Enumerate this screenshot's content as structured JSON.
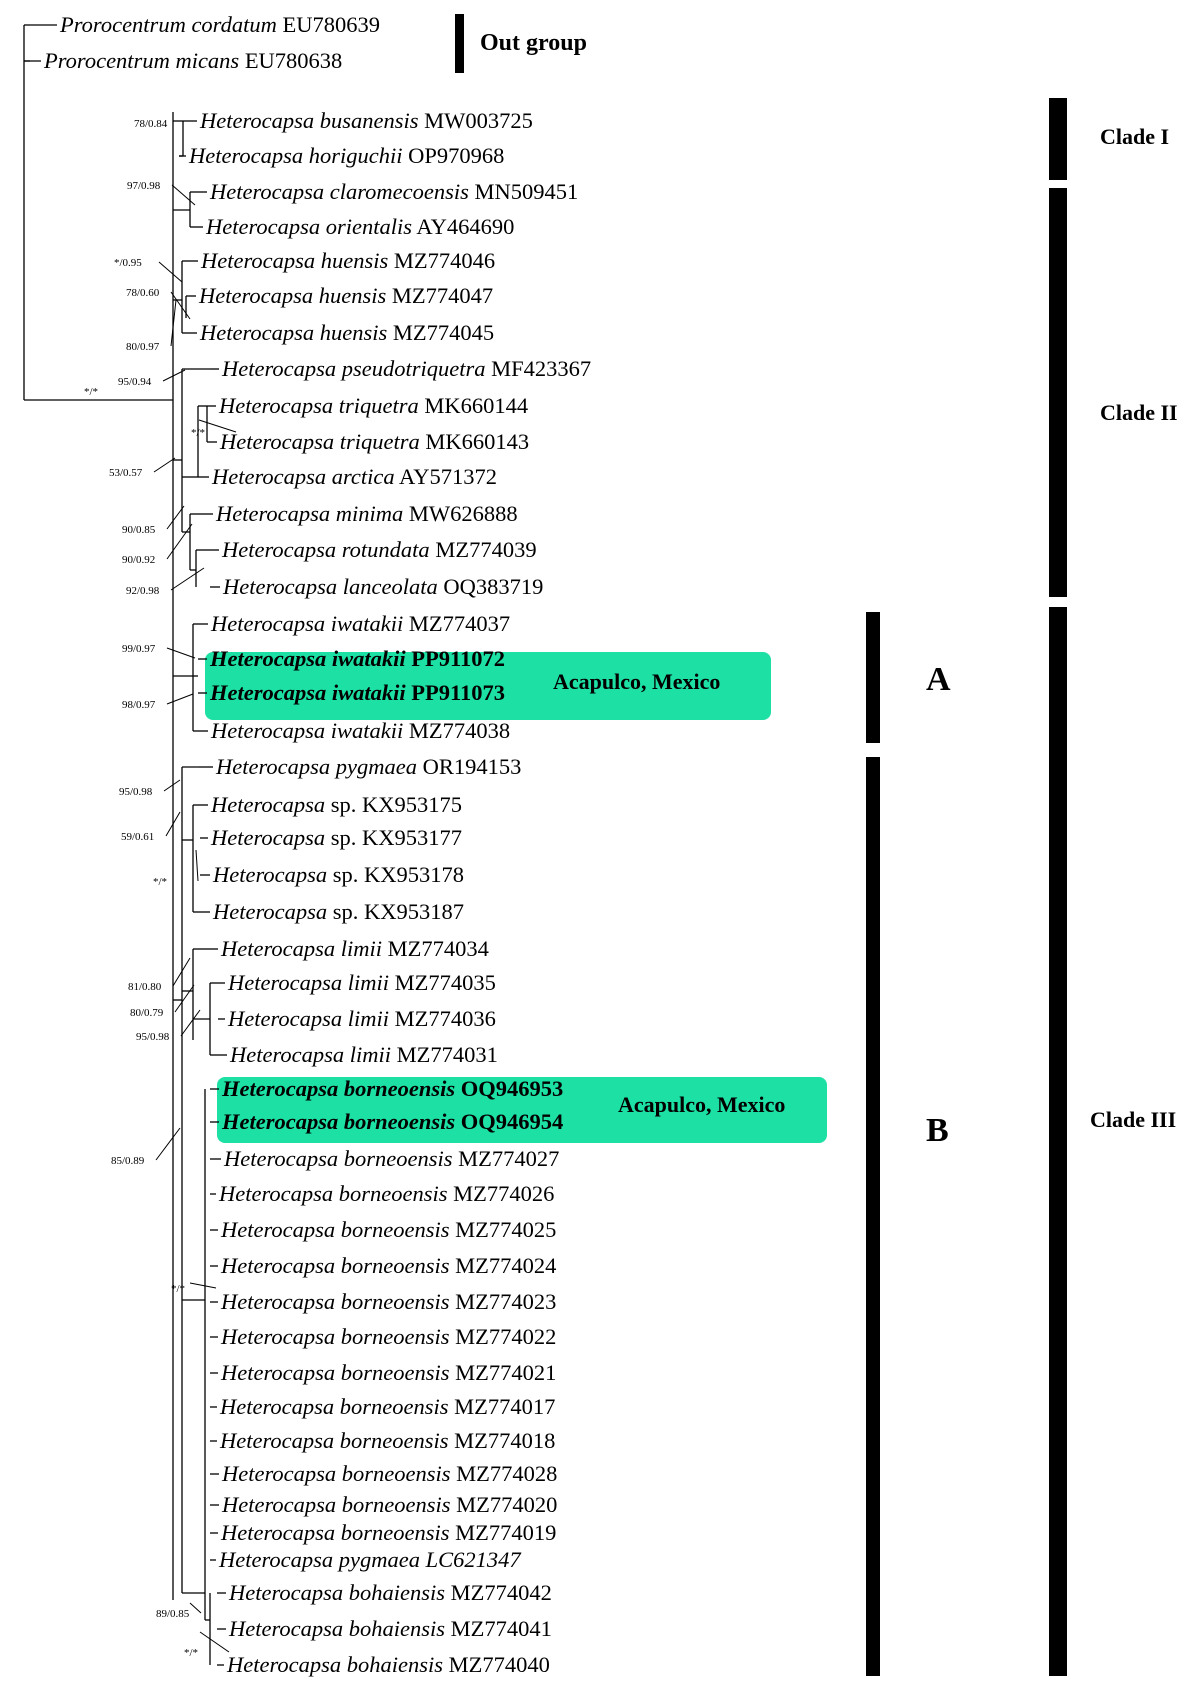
{
  "taxa": [
    {
      "species": "Prorocentrum cordatum",
      "accession": "EU780639"
    },
    {
      "species": "Prorocentrum micans",
      "accession": "EU780638"
    },
    {
      "species": "Heterocapsa busanensis",
      "accession": "MW003725"
    },
    {
      "species": "Heterocapsa horiguchii",
      "accession": "OP970968"
    },
    {
      "species": "Heterocapsa claromecoensis",
      "accession": "MN509451"
    },
    {
      "species": "Heterocapsa orientalis",
      "accession": "AY464690"
    },
    {
      "species": "Heterocapsa huensis",
      "accession": "MZ774046"
    },
    {
      "species": "Heterocapsa huensis",
      "accession": "MZ774047"
    },
    {
      "species": "Heterocapsa huensis",
      "accession": "MZ774045"
    },
    {
      "species": "Heterocapsa pseudotriquetra",
      "accession": "MF423367"
    },
    {
      "species": "Heterocapsa triquetra",
      "accession": "MK660144"
    },
    {
      "species": "Heterocapsa triquetra",
      "accession": "MK660143"
    },
    {
      "species": "Heterocapsa arctica",
      "accession": "AY571372"
    },
    {
      "species": "Heterocapsa minima",
      "accession": "MW626888"
    },
    {
      "species": "Heterocapsa rotundata",
      "accession": "MZ774039"
    },
    {
      "species": "Heterocapsa lanceolata",
      "accession": "OQ383719"
    },
    {
      "species": "Heterocapsa iwatakii",
      "accession": "MZ774037"
    },
    {
      "species": "Heterocapsa iwatakii",
      "accession": "PP911072",
      "bold": true
    },
    {
      "species": "Heterocapsa iwatakii",
      "accession": "PP911073",
      "bold": true
    },
    {
      "species": "Heterocapsa iwatakii",
      "accession": "MZ774038"
    },
    {
      "species": "Heterocapsa pygmaea",
      "accession": "OR194153"
    },
    {
      "species": "Heterocapsa",
      "extra": "sp.",
      "accession": "KX953175"
    },
    {
      "species": "Heterocapsa",
      "extra": "sp.",
      "accession": "KX953177"
    },
    {
      "species": "Heterocapsa",
      "extra": "sp.",
      "accession": "KX953178"
    },
    {
      "species": "Heterocapsa",
      "extra": "sp.",
      "accession": "KX953187"
    },
    {
      "species": "Heterocapsa limii",
      "accession": "MZ774034"
    },
    {
      "species": "Heterocapsa limii",
      "accession": "MZ774035"
    },
    {
      "species": "Heterocapsa limii",
      "accession": "MZ774036"
    },
    {
      "species": "Heterocapsa limii",
      "accession": "MZ774031"
    },
    {
      "species": "Heterocapsa borneoensis",
      "accession": "OQ946953",
      "bold": true
    },
    {
      "species": "Heterocapsa borneoensis",
      "accession": "OQ946954",
      "bold": true
    },
    {
      "species": "Heterocapsa borneoensis",
      "accession": "MZ774027"
    },
    {
      "species": "Heterocapsa borneoensis",
      "accession": "MZ774026"
    },
    {
      "species": "Heterocapsa borneoensis",
      "accession": "MZ774025"
    },
    {
      "species": "Heterocapsa borneoensis",
      "accession": "MZ774024"
    },
    {
      "species": "Heterocapsa borneoensis",
      "accession": "MZ774023"
    },
    {
      "species": "Heterocapsa borneoensis",
      "accession": "MZ774022"
    },
    {
      "species": "Heterocapsa borneoensis",
      "accession": "MZ774021"
    },
    {
      "species": "Heterocapsa borneoensis",
      "accession": "MZ774017"
    },
    {
      "species": "Heterocapsa borneoensis",
      "accession": "MZ774018"
    },
    {
      "species": "Heterocapsa borneoensis",
      "accession": "MZ774028"
    },
    {
      "species": "Heterocapsa borneoensis",
      "accession": "MZ774020"
    },
    {
      "species": "Heterocapsa borneoensis",
      "accession": "MZ774019"
    },
    {
      "species": "Heterocapsa pygmaea LC621347",
      "accession": ""
    },
    {
      "species": "Heterocapsa bohaiensis",
      "accession": "MZ774042"
    },
    {
      "species": "Heterocapsa bohaiensis",
      "accession": "MZ774041"
    },
    {
      "species": "Heterocapsa bohaiensis",
      "accession": "MZ774040"
    }
  ],
  "support_values": [
    "78/0.84",
    "97/0.98",
    "*/0.95",
    "78/0.60",
    "80/0.97",
    "95/0.94",
    "*/*",
    "*/*",
    "53/0.57",
    "90/0.85",
    "90/0.92",
    "92/0.98",
    "99/0.97",
    "98/0.97",
    "95/0.98",
    "59/0.61",
    "*/*",
    "81/0.80",
    "80/0.79",
    "95/0.98",
    "85/0.89",
    "*/*",
    "89/0.85",
    "*/*"
  ],
  "highlights": [
    {
      "label": "Acapulco, Mexico",
      "color": "#1de0a4"
    },
    {
      "label": "Acapulco, Mexico",
      "color": "#1de0a4"
    }
  ],
  "group_labels": {
    "outgroup": "Out group",
    "clade_1": "Clade I",
    "clade_2": "Clade II",
    "clade_3": "Clade III",
    "subclade_a": "A",
    "subclade_b": "B"
  }
}
